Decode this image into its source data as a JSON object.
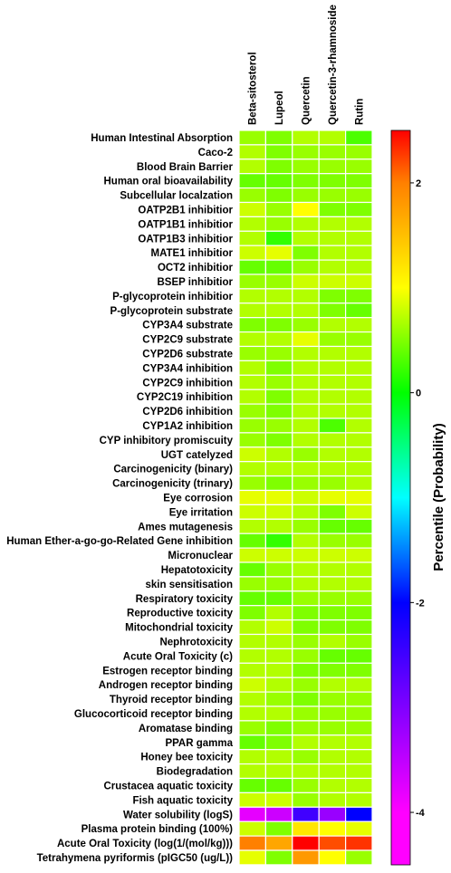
{
  "chart_data": {
    "type": "heatmap",
    "columns": [
      "Beta-sitosterol",
      "Lupeol",
      "Quercetin",
      "Quercetin-3-rhamnoside",
      "Rutin"
    ],
    "rows": [
      "Human Intestinal Absorption",
      "Caco-2",
      "Blood Brain Barrier",
      "Human oral bioavailability",
      "Subcellular localzation",
      "OATP2B1 inhibitior",
      "OATP1B1 inhibitior",
      "OATP1B3 inhibitior",
      "MATE1 inhibitior",
      "OCT2 inhibitior",
      "BSEP inhibitior",
      "P-glycoprotein inhibitior",
      "P-glycoprotein substrate",
      "CYP3A4 substrate",
      "CYP2C9 substrate",
      "CYP2D6 substrate",
      "CYP3A4 inhibition",
      "CYP2C9 inhibition",
      "CYP2C19 inhibition",
      "CYP2D6 inhibition",
      "CYP1A2 inhibition",
      "CYP inhibitory promiscuity",
      "UGT catelyzed",
      "Carcinogenicity (binary)",
      "Carcinogenicity (trinary)",
      "Eye corrosion",
      "Eye irritation",
      "Ames mutagenesis",
      "Human Ether-a-go-go-Related Gene inhibition",
      "Micronuclear",
      "Hepatotoxicity",
      "skin sensitisation",
      "Respiratory toxicity",
      "Reproductive toxicity",
      "Mitochondrial toxicity",
      "Nephrotoxicity",
      "Acute Oral Toxicity (c)",
      "Estrogen receptor binding",
      "Androgen receptor binding",
      "Thyroid receptor binding",
      "Glucocorticoid receptor binding",
      "Aromatase binding",
      "PPAR gamma",
      "Honey bee toxicity",
      "Biodegradation",
      "Crustacea aquatic toxicity",
      "Fish aquatic toxicity",
      "Water solubility (logS)",
      "Plasma protein binding (100%)",
      "Acute Oral Toxicity (log(1/(mol/kg)))",
      "Tetrahymena pyriformis (pIGC50 (ug/L))"
    ],
    "values": [
      [
        0.6,
        0.5,
        0.7,
        0.7,
        0.3
      ],
      [
        0.7,
        0.5,
        0.6,
        0.6,
        0.6
      ],
      [
        0.7,
        0.5,
        0.6,
        0.6,
        0.6
      ],
      [
        0.4,
        0.4,
        0.5,
        0.5,
        0.5
      ],
      [
        0.6,
        0.5,
        0.6,
        0.6,
        0.6
      ],
      [
        0.8,
        0.6,
        1.0,
        0.5,
        0.5
      ],
      [
        0.7,
        0.6,
        0.7,
        0.7,
        0.7
      ],
      [
        0.7,
        0.2,
        0.7,
        0.7,
        0.7
      ],
      [
        0.8,
        0.9,
        0.5,
        0.7,
        0.7
      ],
      [
        0.4,
        0.4,
        0.6,
        0.7,
        0.7
      ],
      [
        0.6,
        0.6,
        0.8,
        0.8,
        0.8
      ],
      [
        0.7,
        0.7,
        0.7,
        0.5,
        0.5
      ],
      [
        0.7,
        0.7,
        0.7,
        0.5,
        0.4
      ],
      [
        0.5,
        0.5,
        0.6,
        0.7,
        0.7
      ],
      [
        0.7,
        0.7,
        0.9,
        0.6,
        0.6
      ],
      [
        0.6,
        0.6,
        0.7,
        0.7,
        0.7
      ],
      [
        0.7,
        0.5,
        0.7,
        0.7,
        0.7
      ],
      [
        0.7,
        0.6,
        0.7,
        0.7,
        0.7
      ],
      [
        0.7,
        0.5,
        0.7,
        0.7,
        0.7
      ],
      [
        0.6,
        0.5,
        0.7,
        0.7,
        0.7
      ],
      [
        0.6,
        0.6,
        0.7,
        0.3,
        0.7
      ],
      [
        0.6,
        0.5,
        0.7,
        0.7,
        0.7
      ],
      [
        0.8,
        0.7,
        0.6,
        0.7,
        0.7
      ],
      [
        0.7,
        0.7,
        0.7,
        0.7,
        0.7
      ],
      [
        0.6,
        0.5,
        0.6,
        0.6,
        0.7
      ],
      [
        0.9,
        0.9,
        0.8,
        0.9,
        0.9
      ],
      [
        0.8,
        0.8,
        0.7,
        0.5,
        0.8
      ],
      [
        0.7,
        0.7,
        0.6,
        0.4,
        0.4
      ],
      [
        0.4,
        0.2,
        0.7,
        0.6,
        0.6
      ],
      [
        0.8,
        0.8,
        0.8,
        0.8,
        0.8
      ],
      [
        0.4,
        0.6,
        0.7,
        0.7,
        0.7
      ],
      [
        0.6,
        0.6,
        0.7,
        0.7,
        0.7
      ],
      [
        0.4,
        0.4,
        0.6,
        0.6,
        0.6
      ],
      [
        0.5,
        0.7,
        0.5,
        0.5,
        0.5
      ],
      [
        0.7,
        0.8,
        0.5,
        0.5,
        0.5
      ],
      [
        0.7,
        0.7,
        0.6,
        0.7,
        0.6
      ],
      [
        0.7,
        0.7,
        0.6,
        0.4,
        0.4
      ],
      [
        0.7,
        0.7,
        0.5,
        0.5,
        0.5
      ],
      [
        0.8,
        0.7,
        0.6,
        0.7,
        0.7
      ],
      [
        0.7,
        0.6,
        0.5,
        0.6,
        0.6
      ],
      [
        0.7,
        0.7,
        0.6,
        0.6,
        0.6
      ],
      [
        0.6,
        0.5,
        0.6,
        0.6,
        0.6
      ],
      [
        0.4,
        0.5,
        0.7,
        0.7,
        0.7
      ],
      [
        0.7,
        0.7,
        0.6,
        0.7,
        0.7
      ],
      [
        0.7,
        0.7,
        0.7,
        0.7,
        0.7
      ],
      [
        0.4,
        0.4,
        0.6,
        0.7,
        0.7
      ],
      [
        0.8,
        0.8,
        0.6,
        0.7,
        0.7
      ],
      [
        -3.8,
        -3.6,
        -2.5,
        -3.2,
        -2.0
      ],
      [
        0.8,
        0.5,
        1.2,
        1.0,
        0.9
      ],
      [
        2.0,
        1.7,
        2.5,
        2.2,
        2.3
      ],
      [
        0.9,
        0.5,
        1.8,
        1.0,
        0.6
      ]
    ],
    "colorbar": {
      "title": "Percentile (Probability)",
      "range": [
        -4.5,
        2.5
      ],
      "ticks": [
        2,
        0,
        -2,
        -4
      ],
      "tick_labels": [
        "2",
        "0",
        "-2",
        "-4"
      ],
      "colors": [
        "#ff0000",
        "#ff8000",
        "#ffff00",
        "#00ff00",
        "#00ffff",
        "#0000ff",
        "#8000ff",
        "#ff00ff"
      ]
    }
  }
}
